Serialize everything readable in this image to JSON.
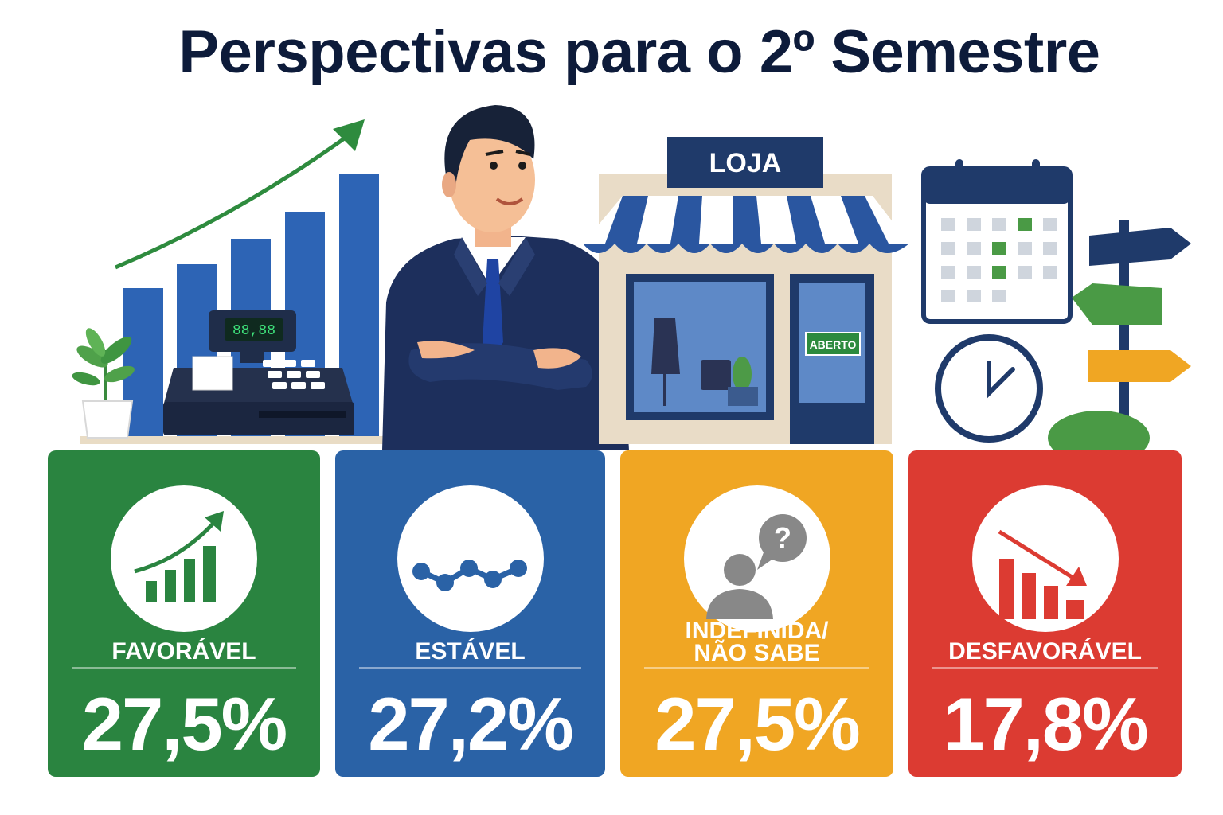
{
  "title": "Perspectivas para o 2º Semestre",
  "illustration": {
    "register_display": "88,88",
    "store_sign": "LOJA",
    "door_sign": "ABERTO"
  },
  "cards": [
    {
      "label": "FAVORÁVEL",
      "value": "27,5%",
      "color": "#2a8440",
      "icon": "growth-chart-icon"
    },
    {
      "label": "ESTÁVEL",
      "value": "27,2%",
      "color": "#2a62a6",
      "icon": "stable-line-icon"
    },
    {
      "label": "INDEFINIDA/\nNÃO SABE",
      "value": "27,5%",
      "color": "#f0a623",
      "icon": "person-question-icon"
    },
    {
      "label": "DESFAVORÁVEL",
      "value": "17,8%",
      "color": "#dc3b32",
      "icon": "decline-chart-icon"
    }
  ]
}
